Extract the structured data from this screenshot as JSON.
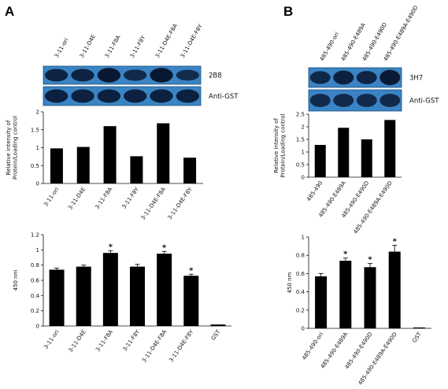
{
  "panel_labels": [
    "A",
    "B"
  ],
  "blots": {
    "A": {
      "lane_labels": [
        "3-11-ori",
        "3-11-D4E",
        "3-11-F8A",
        "3-11-F8Y",
        "3-11-D4E-F8A",
        "3-11-D4E-F8Y"
      ],
      "rows": [
        {
          "label": "2B8",
          "band_strength": [
            0.75,
            0.75,
            1.0,
            0.6,
            1.0,
            0.55
          ]
        },
        {
          "label": "Anti-GST",
          "band_strength": [
            0.8,
            0.8,
            0.8,
            0.8,
            0.8,
            0.8
          ]
        }
      ]
    },
    "B": {
      "lane_labels": [
        "485-490-ori",
        "485-490-E489A",
        "485-490-E490D",
        "485-490-E489A-E490D"
      ],
      "rows": [
        {
          "label": "3H7",
          "band_strength": [
            0.65,
            0.8,
            0.7,
            0.95
          ]
        },
        {
          "label": "Anti-GST",
          "band_strength": [
            0.6,
            0.6,
            0.6,
            0.6
          ]
        }
      ]
    }
  },
  "chart_data": [
    {
      "id": "A-top",
      "type": "bar",
      "categories": [
        "3-11-ori",
        "3-11-D4E",
        "3-11-F8A",
        "3-11-F8Y",
        "3-11-D4E-F8A",
        "3-11-D4E-F8Y"
      ],
      "values": [
        0.98,
        1.02,
        1.6,
        0.76,
        1.68,
        0.72
      ],
      "ylabel": "Relative intensity of Protein/Loading control",
      "ylim": [
        0,
        2
      ],
      "yticks": [
        "0",
        "0.5",
        "1",
        "1.5",
        "2"
      ],
      "color": "#000000"
    },
    {
      "id": "A-bottom",
      "type": "bar",
      "categories": [
        "3-11-ori",
        "3-11-D4E",
        "3-11-F8A",
        "3-11-F8Y",
        "3-11-D4E-F8A",
        "3-11-D4E-F8Y",
        "GST"
      ],
      "values": [
        0.74,
        0.78,
        0.96,
        0.78,
        0.95,
        0.66,
        0.02
      ],
      "errors": [
        0.02,
        0.02,
        0.03,
        0.03,
        0.03,
        0.02,
        0.0
      ],
      "significant": [
        false,
        false,
        true,
        false,
        true,
        true,
        false
      ],
      "significance_mark": "*",
      "ylabel": "450 nm",
      "ylim": [
        0,
        1.2
      ],
      "yticks": [
        "0",
        "0.2",
        "0.4",
        "0.6",
        "0.8",
        "1",
        "1.2"
      ],
      "color": "#000000"
    },
    {
      "id": "B-top",
      "type": "bar",
      "categories": [
        "485-490",
        "485-490-E489A",
        "485-490-E490D",
        "485-490-E489A-E490D"
      ],
      "values": [
        1.28,
        1.96,
        1.5,
        2.27
      ],
      "ylabel": "Relative intensity of Protein/Loading control",
      "ylim": [
        0,
        2.5
      ],
      "yticks": [
        "0",
        "0.5",
        "1",
        "1.5",
        "2",
        "2.5"
      ],
      "color": "#000000"
    },
    {
      "id": "B-bottom",
      "type": "bar",
      "categories": [
        "485-490-ori",
        "485-490-E489A",
        "485-490-E490D",
        "485-490-E489A-E490D",
        "GST"
      ],
      "values": [
        0.57,
        0.74,
        0.67,
        0.84,
        0.01
      ],
      "errors": [
        0.03,
        0.03,
        0.04,
        0.07,
        0.0
      ],
      "significant": [
        false,
        true,
        true,
        true,
        false
      ],
      "significance_mark": "*",
      "ylabel": "450 nm",
      "ylim": [
        0,
        1
      ],
      "yticks": [
        "0",
        "0.2",
        "0.4",
        "0.6",
        "0.8",
        "1"
      ],
      "color": "#000000"
    }
  ]
}
